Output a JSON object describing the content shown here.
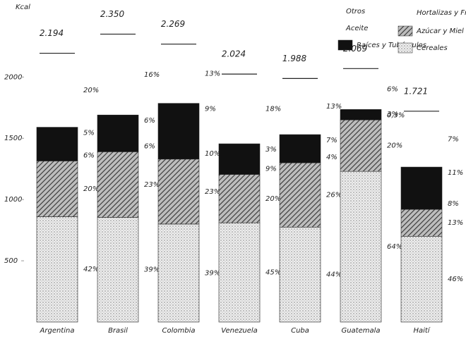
{
  "chart_data": {
    "type": "stacked_bar",
    "y_label": "Kcal",
    "categories": [
      "Argentina",
      "Brasil",
      "Colombia",
      "Venezuela",
      "Cuba",
      "Guatemala",
      "Haití"
    ],
    "series": [
      {
        "name": "Cereales",
        "color": "#cfcfcf",
        "pattern": "dots",
        "values": [
          860,
          855,
          800,
          810,
          775,
          1230,
          700
        ]
      },
      {
        "name": "Azúcar y Miel",
        "color": "#555555",
        "pattern": "hatch",
        "values": [
          455,
          535,
          530,
          395,
          525,
          420,
          220
        ]
      },
      {
        "name": "Raíces y Tubérculos",
        "color": "#111111",
        "pattern": "solid",
        "values": [
          275,
          300,
          455,
          250,
          230,
          85,
          345
        ]
      }
    ],
    "other_legend": [
      "Otros",
      "Aceite",
      "Hortalizas y Frutas"
    ],
    "totals": {
      "values": [
        2194,
        2350,
        2269,
        2024,
        1988,
        2069,
        1721
      ],
      "value_labels": [
        "2.194",
        "2.350",
        "2.269",
        "2.024",
        "1.988",
        "2.069",
        "1.721"
      ]
    },
    "percent_labels": [
      [
        "20%",
        "5%",
        "6%",
        "20%",
        "42%"
      ],
      [
        "16%",
        "6%",
        "6%",
        "23%",
        "39%"
      ],
      [
        "13%",
        "9%",
        "10%",
        "23%",
        "39%"
      ],
      [
        "18%",
        "3%",
        "9%",
        "20%",
        "45%"
      ],
      [
        "13%",
        "7%",
        "4%",
        "26%",
        "44%"
      ],
      [
        "6%",
        "0,3%",
        "3%",
        "20%",
        "64%"
      ],
      [
        "7%",
        "11%",
        "8%",
        "13%",
        "46%"
      ]
    ],
    "ylim": [
      0,
      2600
    ],
    "yticks": [
      500,
      1000,
      1500,
      2000
    ]
  }
}
